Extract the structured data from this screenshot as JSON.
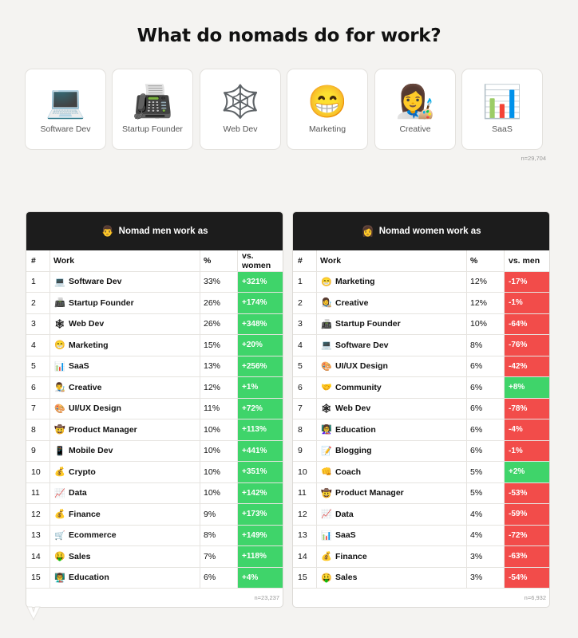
{
  "title": "What do nomads do for work?",
  "top_cards": [
    {
      "icon": "laptop-icon",
      "glyph": "💻",
      "label": "Software Dev"
    },
    {
      "icon": "printer-icon",
      "glyph": "📠",
      "label": "Startup Founder"
    },
    {
      "icon": "spiderweb-icon",
      "glyph": "🕸️",
      "label": "Web Dev"
    },
    {
      "icon": "grinning-face-icon",
      "glyph": "😁",
      "label": "Marketing"
    },
    {
      "icon": "artist-icon",
      "glyph": "👩‍🎨",
      "label": "Creative"
    },
    {
      "icon": "bar-chart-icon",
      "glyph": "📊",
      "label": "SaaS"
    }
  ],
  "top_note": "n=29,704",
  "men": {
    "heading_icon": "man-face-icon",
    "heading_glyph": "👨",
    "heading": "Nomad men work as",
    "columns": [
      "#",
      "Work",
      "%",
      "vs. women"
    ],
    "rows": [
      {
        "rank": "1",
        "icon": "💻",
        "work": "Software Dev",
        "pct": "33%",
        "vs": "+321%"
      },
      {
        "rank": "2",
        "icon": "📠",
        "work": "Startup Founder",
        "pct": "26%",
        "vs": "+174%"
      },
      {
        "rank": "3",
        "icon": "🕸",
        "work": "Web Dev",
        "pct": "26%",
        "vs": "+348%"
      },
      {
        "rank": "4",
        "icon": "😁",
        "work": "Marketing",
        "pct": "15%",
        "vs": "+20%"
      },
      {
        "rank": "5",
        "icon": "📊",
        "work": "SaaS",
        "pct": "13%",
        "vs": "+256%"
      },
      {
        "rank": "6",
        "icon": "👨‍🎨",
        "work": "Creative",
        "pct": "12%",
        "vs": "+1%"
      },
      {
        "rank": "7",
        "icon": "🎨",
        "work": "UI/UX Design",
        "pct": "11%",
        "vs": "+72%"
      },
      {
        "rank": "8",
        "icon": "🤠",
        "work": "Product Manager",
        "pct": "10%",
        "vs": "+113%"
      },
      {
        "rank": "9",
        "icon": "📱",
        "work": "Mobile Dev",
        "pct": "10%",
        "vs": "+441%"
      },
      {
        "rank": "10",
        "icon": "💰",
        "work": "Crypto",
        "pct": "10%",
        "vs": "+351%"
      },
      {
        "rank": "11",
        "icon": "📈",
        "work": "Data",
        "pct": "10%",
        "vs": "+142%"
      },
      {
        "rank": "12",
        "icon": "💰",
        "work": "Finance",
        "pct": "9%",
        "vs": "+173%"
      },
      {
        "rank": "13",
        "icon": "🛒",
        "work": "Ecommerce",
        "pct": "8%",
        "vs": "+149%"
      },
      {
        "rank": "14",
        "icon": "🤑",
        "work": "Sales",
        "pct": "7%",
        "vs": "+118%"
      },
      {
        "rank": "15",
        "icon": "👨‍🏫",
        "work": "Education",
        "pct": "6%",
        "vs": "+4%"
      }
    ],
    "note": "n=23,237"
  },
  "women": {
    "heading_icon": "woman-face-icon",
    "heading_glyph": "👩",
    "heading": "Nomad women work as",
    "columns": [
      "#",
      "Work",
      "%",
      "vs. men"
    ],
    "rows": [
      {
        "rank": "1",
        "icon": "😁",
        "work": "Marketing",
        "pct": "12%",
        "vs": "-17%"
      },
      {
        "rank": "2",
        "icon": "👩‍🎨",
        "work": "Creative",
        "pct": "12%",
        "vs": "-1%"
      },
      {
        "rank": "3",
        "icon": "📠",
        "work": "Startup Founder",
        "pct": "10%",
        "vs": "-64%"
      },
      {
        "rank": "4",
        "icon": "💻",
        "work": "Software Dev",
        "pct": "8%",
        "vs": "-76%"
      },
      {
        "rank": "5",
        "icon": "🎨",
        "work": "UI/UX Design",
        "pct": "6%",
        "vs": "-42%"
      },
      {
        "rank": "6",
        "icon": "🤝",
        "work": "Community",
        "pct": "6%",
        "vs": "+8%"
      },
      {
        "rank": "7",
        "icon": "🕸",
        "work": "Web Dev",
        "pct": "6%",
        "vs": "-78%"
      },
      {
        "rank": "8",
        "icon": "👩‍🏫",
        "work": "Education",
        "pct": "6%",
        "vs": "-4%"
      },
      {
        "rank": "9",
        "icon": "📝",
        "work": "Blogging",
        "pct": "6%",
        "vs": "-1%"
      },
      {
        "rank": "10",
        "icon": "👊",
        "work": "Coach",
        "pct": "5%",
        "vs": "+2%"
      },
      {
        "rank": "11",
        "icon": "🤠",
        "work": "Product Manager",
        "pct": "5%",
        "vs": "-53%"
      },
      {
        "rank": "12",
        "icon": "📈",
        "work": "Data",
        "pct": "4%",
        "vs": "-59%"
      },
      {
        "rank": "13",
        "icon": "📊",
        "work": "SaaS",
        "pct": "4%",
        "vs": "-72%"
      },
      {
        "rank": "14",
        "icon": "💰",
        "work": "Finance",
        "pct": "3%",
        "vs": "-63%"
      },
      {
        "rank": "15",
        "icon": "🤑",
        "work": "Sales",
        "pct": "3%",
        "vs": "-54%"
      }
    ],
    "note": "n=6,932"
  },
  "colors": {
    "positive": "#3fd46a",
    "negative": "#f24c4a",
    "header_bg": "#1c1c1c"
  },
  "chart_data": [
    {
      "type": "table",
      "title": "Nomad men work as",
      "columns": [
        "#",
        "Work",
        "%",
        "vs. women"
      ],
      "rows": [
        [
          1,
          "Software Dev",
          33,
          321
        ],
        [
          2,
          "Startup Founder",
          26,
          174
        ],
        [
          3,
          "Web Dev",
          26,
          348
        ],
        [
          4,
          "Marketing",
          15,
          20
        ],
        [
          5,
          "SaaS",
          13,
          256
        ],
        [
          6,
          "Creative",
          12,
          1
        ],
        [
          7,
          "UI/UX Design",
          11,
          72
        ],
        [
          8,
          "Product Manager",
          10,
          113
        ],
        [
          9,
          "Mobile Dev",
          10,
          441
        ],
        [
          10,
          "Crypto",
          10,
          351
        ],
        [
          11,
          "Data",
          10,
          142
        ],
        [
          12,
          "Finance",
          9,
          173
        ],
        [
          13,
          "Ecommerce",
          8,
          149
        ],
        [
          14,
          "Sales",
          7,
          118
        ],
        [
          15,
          "Education",
          6,
          4
        ]
      ]
    },
    {
      "type": "table",
      "title": "Nomad women work as",
      "columns": [
        "#",
        "Work",
        "%",
        "vs. men"
      ],
      "rows": [
        [
          1,
          "Marketing",
          12,
          -17
        ],
        [
          2,
          "Creative",
          12,
          -1
        ],
        [
          3,
          "Startup Founder",
          10,
          -64
        ],
        [
          4,
          "Software Dev",
          8,
          -76
        ],
        [
          5,
          "UI/UX Design",
          6,
          -42
        ],
        [
          6,
          "Community",
          6,
          8
        ],
        [
          7,
          "Web Dev",
          6,
          -78
        ],
        [
          8,
          "Education",
          6,
          -4
        ],
        [
          9,
          "Blogging",
          6,
          -1
        ],
        [
          10,
          "Coach",
          5,
          2
        ],
        [
          11,
          "Product Manager",
          5,
          -53
        ],
        [
          12,
          "Data",
          4,
          -59
        ],
        [
          13,
          "SaaS",
          4,
          -72
        ],
        [
          14,
          "Finance",
          3,
          -63
        ],
        [
          15,
          "Sales",
          3,
          -54
        ]
      ]
    }
  ]
}
